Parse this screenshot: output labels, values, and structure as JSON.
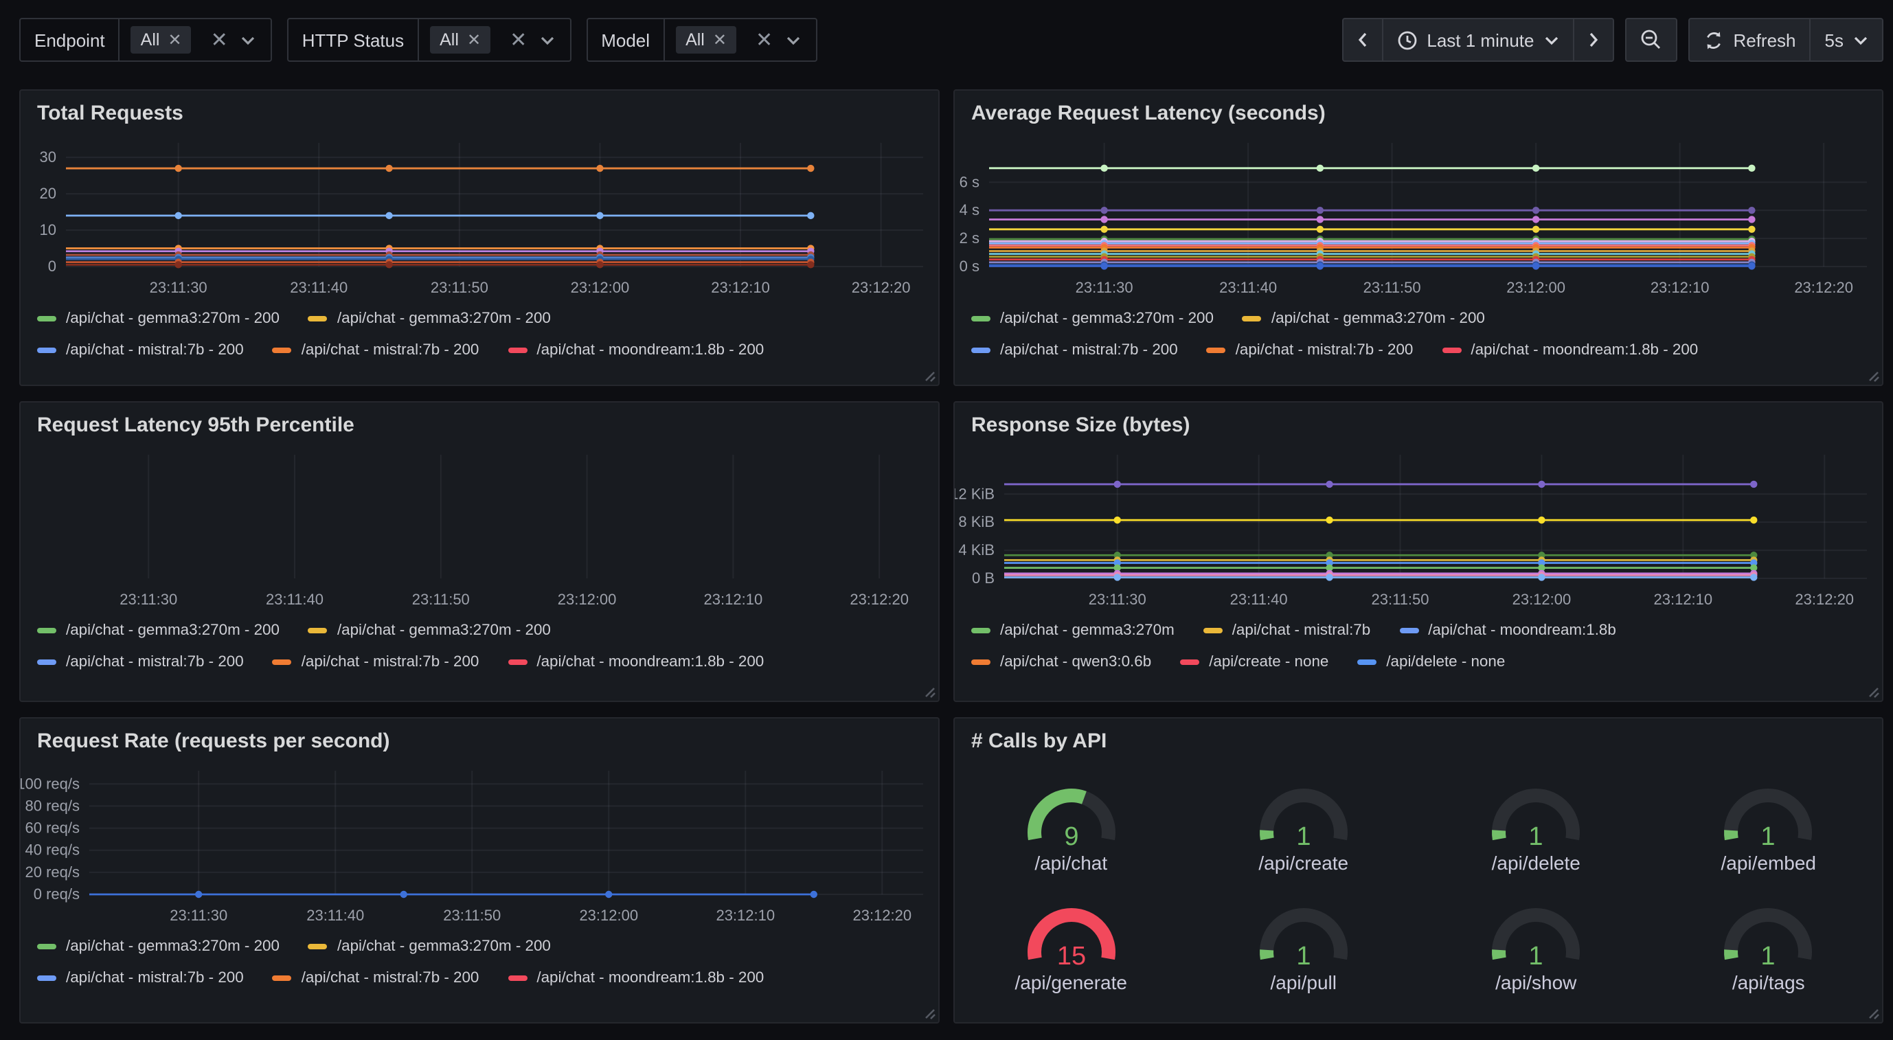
{
  "toolbar": {
    "filters": [
      {
        "label": "Endpoint",
        "selected": "All"
      },
      {
        "label": "HTTP Status",
        "selected": "All"
      },
      {
        "label": "Model",
        "selected": "All"
      }
    ],
    "time": {
      "range_label": "Last 1 minute",
      "refresh_label": "Refresh",
      "refresh_interval": "5s"
    }
  },
  "chart_data": [
    {
      "id": "total_requests",
      "type": "line",
      "title": "Total Requests",
      "x_labels": [
        "23:11:30",
        "23:11:40",
        "23:11:50",
        "23:12:00",
        "23:12:10",
        "23:12:20"
      ],
      "x_points": [
        "23:11:30",
        "23:11:45",
        "23:12:00",
        "23:12:15"
      ],
      "y_ticks": [
        {
          "v": 0,
          "label": "0"
        },
        {
          "v": 10,
          "label": "10"
        },
        {
          "v": 20,
          "label": "20"
        },
        {
          "v": 30,
          "label": "30"
        }
      ],
      "ylim": [
        0,
        34
      ],
      "series": [
        {
          "color": "#E8833A",
          "value": 27
        },
        {
          "color": "#7EB2F5",
          "value": 14
        },
        {
          "color": "#F5913E",
          "value": 5
        },
        {
          "color": "#BE82DF",
          "value": 4.2
        },
        {
          "color": "#A8503C",
          "value": 3.2
        },
        {
          "color": "#4F7EC9",
          "value": 2.5
        },
        {
          "color": "#2D5C9E",
          "value": 2.0
        },
        {
          "color": "#C35430",
          "value": 1.2
        },
        {
          "color": "#842E1E",
          "value": 0.5
        }
      ],
      "legend_rows": [
        [
          {
            "color": "#73BF69",
            "text": "/api/chat - gemma3:270m - 200"
          },
          {
            "color": "#EAB839",
            "text": "/api/chat - gemma3:270m - 200"
          }
        ],
        [
          {
            "color": "#6E9BF5",
            "text": "/api/chat - mistral:7b - 200"
          },
          {
            "color": "#F07C33",
            "text": "/api/chat - mistral:7b - 200"
          },
          {
            "color": "#F2495C",
            "text": "/api/chat - moondream:1.8b - 200"
          }
        ]
      ]
    },
    {
      "id": "avg_latency",
      "type": "line",
      "title": "Average Request Latency (seconds)",
      "x_labels": [
        "23:11:30",
        "23:11:40",
        "23:11:50",
        "23:12:00",
        "23:12:10",
        "23:12:20"
      ],
      "x_points": [
        "23:11:30",
        "23:11:45",
        "23:12:00",
        "23:12:15"
      ],
      "y_ticks": [
        {
          "v": 0,
          "label": "0 s"
        },
        {
          "v": 2,
          "label": "2 s"
        },
        {
          "v": 4,
          "label": "4 s"
        },
        {
          "v": 6,
          "label": "6 s"
        }
      ],
      "ylim": [
        0,
        8.8
      ],
      "series": [
        {
          "color": "#C8F2C2",
          "value": 7.0
        },
        {
          "color": "#6F5BA8",
          "value": 4.0
        },
        {
          "color": "#C77BD9",
          "value": 3.35
        },
        {
          "color": "#F2D53C",
          "value": 2.65
        },
        {
          "color": "#4E8A3F",
          "value": 1.95
        },
        {
          "color": "#E2B8EF",
          "value": 1.8
        },
        {
          "color": "#8AB8FF",
          "value": 1.65
        },
        {
          "color": "#F2737B",
          "value": 1.5
        },
        {
          "color": "#F07830",
          "value": 1.35
        },
        {
          "color": "#D9A43C",
          "value": 1.1
        },
        {
          "color": "#6FC7D9",
          "value": 0.9
        },
        {
          "color": "#A89A30",
          "value": 0.7
        },
        {
          "color": "#D94040",
          "value": 0.5
        },
        {
          "color": "#8785C8",
          "value": 0.3
        },
        {
          "color": "#2850A0",
          "value": 0.12
        },
        {
          "color": "#3A66D1",
          "value": 0.03
        }
      ],
      "legend_rows": [
        [
          {
            "color": "#73BF69",
            "text": "/api/chat - gemma3:270m - 200"
          },
          {
            "color": "#EAB839",
            "text": "/api/chat - gemma3:270m - 200"
          }
        ],
        [
          {
            "color": "#6E9BF5",
            "text": "/api/chat - mistral:7b - 200"
          },
          {
            "color": "#F07C33",
            "text": "/api/chat - mistral:7b - 200"
          },
          {
            "color": "#F2495C",
            "text": "/api/chat - moondream:1.8b - 200"
          }
        ]
      ]
    },
    {
      "id": "p95",
      "type": "line",
      "title": "Request Latency 95th Percentile",
      "x_labels": [
        "23:11:30",
        "23:11:40",
        "23:11:50",
        "23:12:00",
        "23:12:10",
        "23:12:20"
      ],
      "x_points": [
        "23:11:30",
        "23:11:45",
        "23:12:00",
        "23:12:15"
      ],
      "y_ticks": [],
      "ylim": [
        0,
        1
      ],
      "series": [],
      "legend_rows": [
        [
          {
            "color": "#73BF69",
            "text": "/api/chat - gemma3:270m - 200"
          },
          {
            "color": "#EAB839",
            "text": "/api/chat - gemma3:270m - 200"
          }
        ],
        [
          {
            "color": "#6E9BF5",
            "text": "/api/chat - mistral:7b - 200"
          },
          {
            "color": "#F07C33",
            "text": "/api/chat - mistral:7b - 200"
          },
          {
            "color": "#F2495C",
            "text": "/api/chat - moondream:1.8b - 200"
          }
        ]
      ]
    },
    {
      "id": "response_size",
      "type": "line",
      "title": "Response Size (bytes)",
      "x_labels": [
        "23:11:30",
        "23:11:40",
        "23:11:50",
        "23:12:00",
        "23:12:10",
        "23:12:20"
      ],
      "x_points": [
        "23:11:30",
        "23:11:45",
        "23:12:00",
        "23:12:15"
      ],
      "y_ticks": [
        {
          "v": 0,
          "label": "0 B"
        },
        {
          "v": 4,
          "label": "4 KiB"
        },
        {
          "v": 8,
          "label": "8 KiB"
        },
        {
          "v": 12,
          "label": "12 KiB"
        }
      ],
      "ylim": [
        0,
        17.6
      ],
      "unit": "KiB",
      "series": [
        {
          "color": "#7D65C9",
          "value": 13.4
        },
        {
          "color": "#FADE2A",
          "value": 8.3
        },
        {
          "color": "#4E8A3F",
          "value": 3.3
        },
        {
          "color": "#D9B53C",
          "value": 2.6
        },
        {
          "color": "#5794F2",
          "value": 2.2
        },
        {
          "color": "#73BF69",
          "value": 1.5
        },
        {
          "color": "#C77BD9",
          "value": 0.7
        },
        {
          "color": "#E88BB5",
          "value": 0.45
        },
        {
          "color": "#7EB2F5",
          "value": 0.15
        }
      ],
      "legend_rows": [
        [
          {
            "color": "#73BF69",
            "text": "/api/chat - gemma3:270m"
          },
          {
            "color": "#EAB839",
            "text": "/api/chat - mistral:7b"
          },
          {
            "color": "#6E9BF5",
            "text": "/api/chat - moondream:1.8b"
          }
        ],
        [
          {
            "color": "#F07C33",
            "text": "/api/chat - qwen3:0.6b"
          },
          {
            "color": "#F2495C",
            "text": "/api/create - none"
          },
          {
            "color": "#5794F2",
            "text": "/api/delete - none"
          }
        ]
      ]
    },
    {
      "id": "request_rate",
      "type": "line",
      "title": "Request Rate (requests per second)",
      "x_labels": [
        "23:11:30",
        "23:11:40",
        "23:11:50",
        "23:12:00",
        "23:12:10",
        "23:12:20"
      ],
      "x_points": [
        "23:11:30",
        "23:11:45",
        "23:12:00",
        "23:12:15"
      ],
      "y_ticks": [
        {
          "v": 0,
          "label": "0 req/s"
        },
        {
          "v": 20,
          "label": "20 req/s"
        },
        {
          "v": 40,
          "label": "40 req/s"
        },
        {
          "v": 60,
          "label": "60 req/s"
        },
        {
          "v": 80,
          "label": "80 req/s"
        },
        {
          "v": 100,
          "label": "100 req/s"
        }
      ],
      "ylim": [
        0,
        112
      ],
      "series": [
        {
          "color": "#3D71D9",
          "value": 0
        }
      ],
      "legend_rows": [
        [
          {
            "color": "#73BF69",
            "text": "/api/chat - gemma3:270m - 200"
          },
          {
            "color": "#EAB839",
            "text": "/api/chat - gemma3:270m - 200"
          }
        ],
        [
          {
            "color": "#6E9BF5",
            "text": "/api/chat - mistral:7b - 200"
          },
          {
            "color": "#F07C33",
            "text": "/api/chat - mistral:7b - 200"
          },
          {
            "color": "#F2495C",
            "text": "/api/chat - moondream:1.8b - 200"
          }
        ]
      ]
    },
    {
      "id": "calls_by_api",
      "type": "gauge-grid",
      "title": "# Calls by API",
      "min": 0,
      "max": 15,
      "track_color": "#2B2E33",
      "gauges": [
        {
          "label": "/api/chat",
          "value": 9,
          "color": "#73BF69"
        },
        {
          "label": "/api/create",
          "value": 1,
          "color": "#73BF69"
        },
        {
          "label": "/api/delete",
          "value": 1,
          "color": "#73BF69"
        },
        {
          "label": "/api/embed",
          "value": 1,
          "color": "#73BF69"
        },
        {
          "label": "/api/generate",
          "value": 15,
          "color": "#F2495C"
        },
        {
          "label": "/api/pull",
          "value": 1,
          "color": "#73BF69"
        },
        {
          "label": "/api/show",
          "value": 1,
          "color": "#73BF69"
        },
        {
          "label": "/api/tags",
          "value": 1,
          "color": "#73BF69"
        }
      ]
    }
  ]
}
